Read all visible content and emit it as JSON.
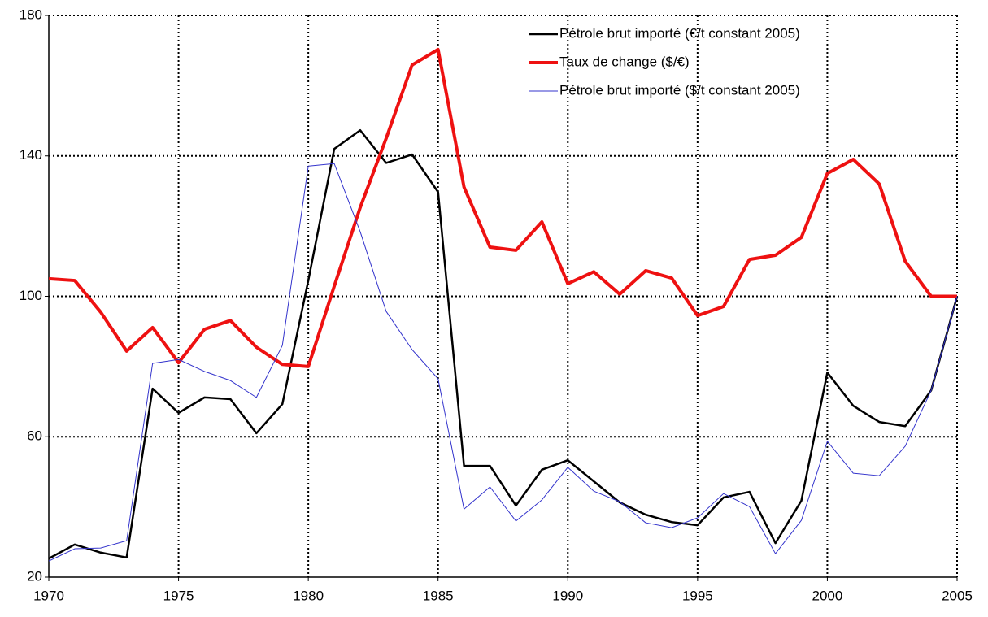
{
  "chart_data": {
    "type": "line",
    "x": [
      1970,
      1971,
      1972,
      1973,
      1974,
      1975,
      1976,
      1977,
      1978,
      1979,
      1980,
      1981,
      1982,
      1983,
      1984,
      1985,
      1986,
      1987,
      1988,
      1989,
      1990,
      1991,
      1992,
      1993,
      1994,
      1995,
      1996,
      1997,
      1998,
      1999,
      2000,
      2001,
      2002,
      2003,
      2004,
      2005
    ],
    "series": [
      {
        "name": "Pétrole brut importé (€/t constant 2005)",
        "color": "#000000",
        "width": 2.5,
        "values": [
          25.3,
          29.3,
          27,
          25.6,
          73.7,
          66.8,
          71.2,
          70.7,
          61,
          69.3,
          104.5,
          142,
          147.3,
          138,
          140.4,
          129.7,
          51.7,
          51.7,
          40.4,
          50.6,
          53.3,
          47.3,
          41.3,
          37.8,
          35.7,
          34.8,
          42.7,
          44.3,
          29.7,
          41.8,
          78.3,
          68.8,
          64.2,
          63,
          73.2,
          100
        ]
      },
      {
        "name": "Taux de change ($/€)",
        "color": "#ee1111",
        "width": 4,
        "values": [
          105,
          104.5,
          95.5,
          84.4,
          91.1,
          81.1,
          90.6,
          93.1,
          85.5,
          80.6,
          80,
          102.9,
          125.3,
          145,
          165.9,
          170.3,
          131.1,
          114,
          113.1,
          121.2,
          103.6,
          107,
          100.6,
          107.3,
          105.2,
          94.5,
          97.1,
          110.5,
          111.7,
          116.8,
          135,
          139,
          132,
          110,
          100,
          100
        ]
      },
      {
        "name": "Pétrole brut importé ($/t constant 2005)",
        "color": "#3333cc",
        "width": 1,
        "values": [
          24.6,
          28.1,
          28.3,
          30.4,
          80.9,
          82,
          78.6,
          76,
          71.2,
          86,
          137.1,
          137.8,
          118.4,
          95.7,
          84.8,
          76.5,
          39.4,
          45.7,
          36,
          42,
          51.3,
          44.5,
          41.5,
          35.5,
          34.1,
          36.9,
          43.8,
          40.1,
          26.7,
          36.2,
          58.7,
          49.6,
          48.9,
          57.3,
          73.2,
          100
        ]
      }
    ],
    "xlim": [
      1970,
      2005
    ],
    "xticks": [
      1970,
      1975,
      1980,
      1985,
      1990,
      1995,
      2000,
      2005
    ],
    "ylim": [
      20,
      180
    ],
    "yticks": [
      20,
      60,
      100,
      140,
      180
    ],
    "grid": true,
    "legend": "top-right"
  }
}
